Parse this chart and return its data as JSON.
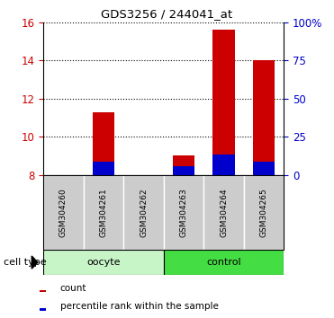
{
  "title": "GDS3256 / 244041_at",
  "samples": [
    "GSM304260",
    "GSM304261",
    "GSM304262",
    "GSM304263",
    "GSM304264",
    "GSM304265"
  ],
  "red_values": [
    8.0,
    11.3,
    8.0,
    9.0,
    15.6,
    14.0
  ],
  "blue_values": [
    8.0,
    8.7,
    8.0,
    8.45,
    9.05,
    8.7
  ],
  "bar_bottom": 8.0,
  "ylim": [
    8,
    16
  ],
  "yticks": [
    8,
    10,
    12,
    14,
    16
  ],
  "right_yticklabels": [
    "0",
    "25",
    "50",
    "75",
    "100%"
  ],
  "group_labels": [
    "oocyte",
    "control"
  ],
  "oocyte_color": "#c8f5c8",
  "control_color": "#44dd44",
  "cell_type_label": "cell type",
  "legend_items": [
    {
      "label": "count",
      "color": "#cc0000"
    },
    {
      "label": "percentile rank within the sample",
      "color": "#0000cc"
    }
  ],
  "bar_color_red": "#cc0000",
  "bar_color_blue": "#0000cc",
  "bar_width": 0.55,
  "left_tick_color": "#cc0000",
  "right_tick_color": "#0000cc",
  "background_color": "#ffffff",
  "sample_area_color": "#cccccc",
  "box_edge_color": "#aaaaaa"
}
